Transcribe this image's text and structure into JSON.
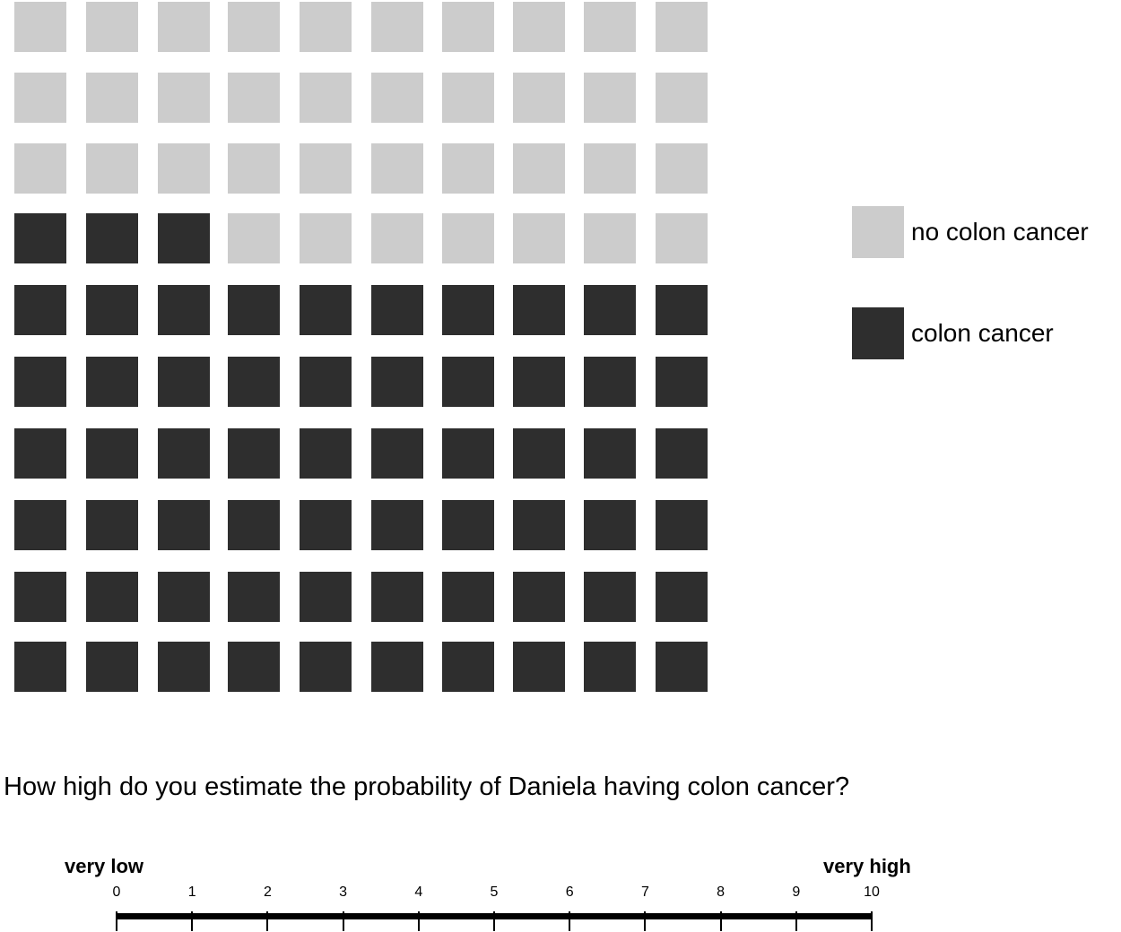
{
  "figure": {
    "grid": {
      "rows": 10,
      "cols": 10,
      "total": 100,
      "colon_cancer_count": 63,
      "no_colon_cancer_count": 37,
      "light_color": "#cccccc",
      "dark_color": "#2e2e2e"
    },
    "legend": [
      {
        "label": "no colon cancer",
        "color": "#cccccc"
      },
      {
        "label": "colon cancer",
        "color": "#2e2e2e"
      }
    ]
  },
  "question": "How high do you estimate the probability of Daniela having colon cancer?",
  "scale": {
    "low_label": "very low",
    "high_label": "very high",
    "ticks": [
      "0",
      "1",
      "2",
      "3",
      "4",
      "5",
      "6",
      "7",
      "8",
      "9",
      "10"
    ]
  }
}
